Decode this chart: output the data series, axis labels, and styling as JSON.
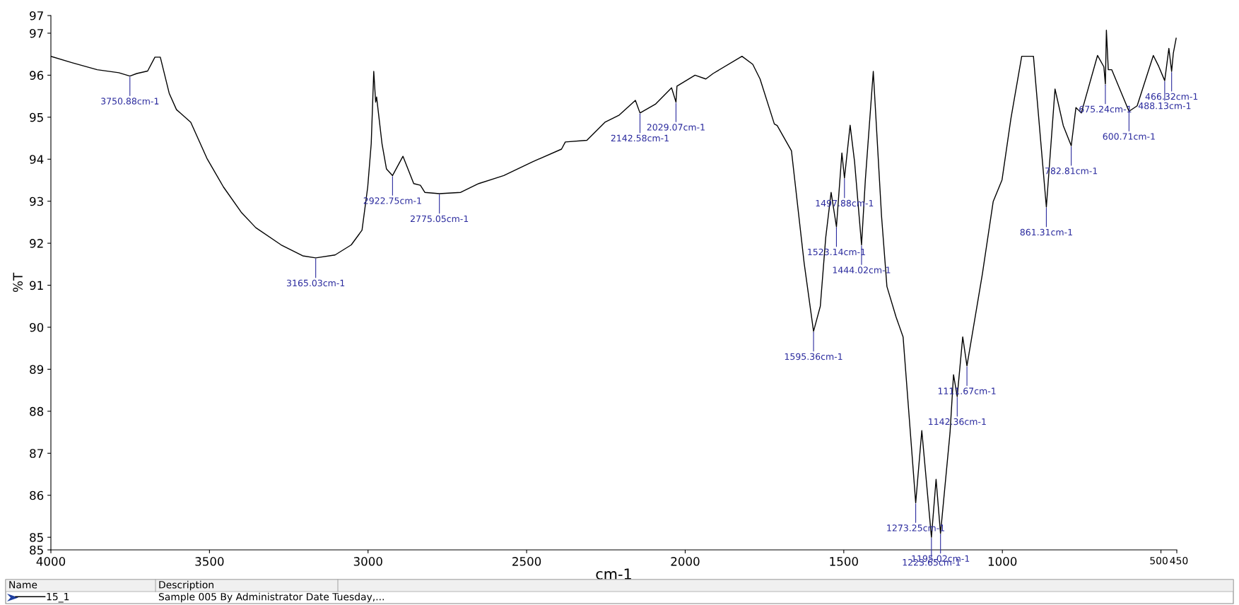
{
  "chart_data": {
    "type": "line",
    "xlabel": "cm-1",
    "ylabel": "%T",
    "xlim": [
      4000,
      450
    ],
    "xticks": [
      4000,
      3500,
      3000,
      2500,
      2000,
      1500,
      1000,
      500,
      450
    ],
    "ylim": [
      84.7,
      97.42
    ],
    "yticks": [
      {
        "value": 84.7,
        "label": "85"
      },
      85,
      86,
      87,
      88,
      89,
      90,
      91,
      92,
      93,
      94,
      95,
      96,
      97,
      {
        "value": 97.42,
        "label": "97"
      }
    ],
    "grid": false,
    "legend": "bottom",
    "marker": "none",
    "line_style": "solid",
    "series": [
      {
        "name": "15_1",
        "color": "#000000",
        "x": [
          4000,
          3934,
          3854,
          3786,
          3750.88,
          3729,
          3695,
          3672,
          3655,
          3627,
          3604,
          3559,
          3508,
          3456,
          3400,
          3354,
          3274,
          3206,
          3165.03,
          3104,
          3053,
          3019,
          3001,
          2990,
          2982,
          2976,
          2973,
          2956,
          2942,
          2922.75,
          2890,
          2856,
          2835,
          2821,
          2775.05,
          2708,
          2651,
          2572,
          2481,
          2390,
          2378,
          2310,
          2253,
          2208,
          2157,
          2142.58,
          2094,
          2043,
          2029.07,
          2026,
          1969,
          1935,
          1912,
          1821,
          1787,
          1764,
          1719,
          1710,
          1665,
          1625,
          1595.36,
          1574,
          1557,
          1540,
          1523.14,
          1506,
          1497.88,
          1480,
          1466,
          1444.02,
          1432,
          1407,
          1381,
          1364,
          1335,
          1313,
          1273.25,
          1254,
          1223.65,
          1209,
          1195.02,
          1165,
          1154,
          1142.36,
          1125,
          1111.67,
          1063,
          1029,
          1001,
          973,
          939,
          902,
          861.31,
          834,
          808,
          782.81,
          768,
          751,
          700,
          680,
          675.24,
          672,
          666,
          655,
          600.71,
          575,
          524,
          507,
          488.13,
          475,
          466.32,
          461,
          452
        ],
        "values": [
          96.45,
          96.3,
          96.13,
          96.06,
          95.98,
          96.04,
          96.1,
          96.43,
          96.43,
          95.57,
          95.18,
          94.88,
          94.02,
          93.34,
          92.74,
          92.37,
          91.96,
          91.7,
          91.65,
          91.72,
          91.96,
          92.31,
          93.34,
          94.37,
          96.09,
          95.36,
          95.48,
          94.37,
          93.77,
          93.61,
          94.07,
          93.42,
          93.38,
          93.21,
          93.18,
          93.21,
          93.42,
          93.61,
          93.94,
          94.24,
          94.41,
          94.45,
          94.88,
          95.05,
          95.4,
          95.1,
          95.31,
          95.7,
          95.36,
          95.74,
          96.0,
          95.91,
          96.04,
          96.45,
          96.26,
          95.91,
          94.84,
          94.8,
          94.2,
          91.53,
          89.9,
          90.5,
          92.13,
          93.21,
          92.39,
          94.15,
          93.55,
          94.81,
          93.94,
          91.96,
          93.51,
          96.09,
          92.65,
          90.97,
          90.24,
          89.77,
          85.82,
          87.54,
          85.0,
          86.38,
          85.09,
          87.49,
          88.87,
          88.35,
          89.77,
          89.08,
          91.27,
          92.99,
          93.51,
          94.97,
          96.45,
          96.45,
          92.86,
          95.67,
          94.8,
          94.32,
          95.23,
          95.1,
          96.47,
          96.2,
          95.79,
          97.07,
          96.13,
          96.13,
          95.14,
          95.27,
          96.47,
          96.21,
          95.87,
          96.64,
          96.09,
          96.52,
          96.88
        ]
      }
    ],
    "annotations": [
      {
        "text": "3750.88cm-1",
        "x": 3750.88,
        "y": 95.98
      },
      {
        "text": "3165.03cm-1",
        "x": 3165.03,
        "y": 91.65
      },
      {
        "text": "2922.75cm-1",
        "x": 2922.75,
        "y": 93.61
      },
      {
        "text": "2775.05cm-1",
        "x": 2775.05,
        "y": 93.18
      },
      {
        "text": "2142.58cm-1",
        "x": 2142.58,
        "y": 95.1
      },
      {
        "text": "2029.07cm-1",
        "x": 2029.07,
        "y": 95.36
      },
      {
        "text": "1595.36cm-1",
        "x": 1595.36,
        "y": 89.9
      },
      {
        "text": "1523.14cm-1",
        "x": 1523.14,
        "y": 92.39
      },
      {
        "text": "1497.88cm-1",
        "x": 1497.88,
        "y": 93.55
      },
      {
        "text": "1444.02cm-1",
        "x": 1444.02,
        "y": 91.96
      },
      {
        "text": "1273.25cm-1",
        "x": 1273.25,
        "y": 85.82
      },
      {
        "text": "1223.65cm-1",
        "x": 1223.65,
        "y": 85.0
      },
      {
        "text": "1195.02cm-1",
        "x": 1195.02,
        "y": 85.09
      },
      {
        "text": "1142.36cm-1",
        "x": 1142.36,
        "y": 88.35
      },
      {
        "text": "1111.67cm-1",
        "x": 1111.67,
        "y": 89.08
      },
      {
        "text": "861.31cm-1",
        "x": 861.31,
        "y": 92.86
      },
      {
        "text": "782.81cm-1",
        "x": 782.81,
        "y": 94.32
      },
      {
        "text": "675.24cm-1",
        "x": 675.24,
        "y": 95.79
      },
      {
        "text": "600.71cm-1",
        "x": 600.71,
        "y": 95.14
      },
      {
        "text": "488.13cm-1",
        "x": 488.13,
        "y": 95.87
      },
      {
        "text": "466.32cm-1",
        "x": 466.32,
        "y": 96.09
      },
      "Name",
      "Description",
      "Sample 005 By Administrator Date Tuesday,..."
    ]
  }
}
